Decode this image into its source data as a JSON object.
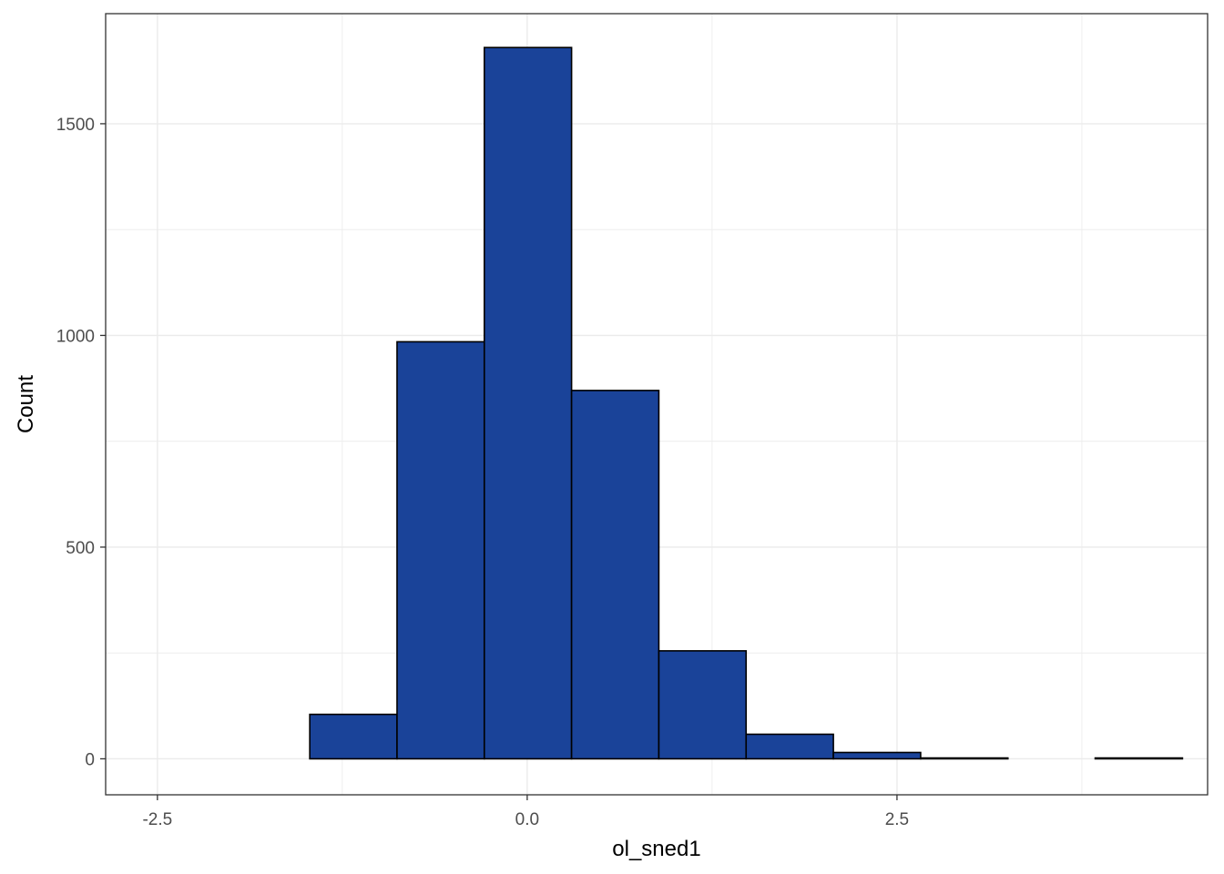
{
  "chart_data": {
    "type": "histogram",
    "xlabel": "ol_sned1",
    "ylabel": "Count",
    "xlim": [
      -2.85,
      4.6
    ],
    "ylim": [
      -85,
      1760
    ],
    "x_ticks": [
      {
        "value": -2.5,
        "label": "-2.5"
      },
      {
        "value": 0.0,
        "label": "0.0"
      },
      {
        "value": 2.5,
        "label": "2.5"
      }
    ],
    "y_ticks": [
      {
        "value": 0,
        "label": "0"
      },
      {
        "value": 500,
        "label": "500"
      },
      {
        "value": 1000,
        "label": "1000"
      },
      {
        "value": 1500,
        "label": "1500"
      }
    ],
    "x_minor_gridlines": [
      -1.25,
      1.25,
      3.75
    ],
    "y_minor_gridlines": [
      250,
      750,
      1250
    ],
    "bins": [
      {
        "x0": -2.65,
        "x1": -2.06,
        "count": 0
      },
      {
        "x0": -2.06,
        "x1": -1.47,
        "count": 0
      },
      {
        "x0": -1.47,
        "x1": -0.88,
        "count": 105
      },
      {
        "x0": -0.88,
        "x1": -0.29,
        "count": 985
      },
      {
        "x0": -0.29,
        "x1": 0.3,
        "count": 1680
      },
      {
        "x0": 0.3,
        "x1": 0.89,
        "count": 870
      },
      {
        "x0": 0.89,
        "x1": 1.48,
        "count": 255
      },
      {
        "x0": 1.48,
        "x1": 2.07,
        "count": 58
      },
      {
        "x0": 2.07,
        "x1": 2.66,
        "count": 15
      },
      {
        "x0": 2.66,
        "x1": 3.25,
        "count": 2
      },
      {
        "x0": 3.25,
        "x1": 3.84,
        "count": 0
      },
      {
        "x0": 3.84,
        "x1": 4.43,
        "count": 2
      }
    ],
    "fill_color": "#1a4399",
    "stroke_color": "#000000",
    "grid": true,
    "grid_color": "#ebebeb",
    "panel_border_color": "#333333",
    "background": "#ffffff"
  }
}
